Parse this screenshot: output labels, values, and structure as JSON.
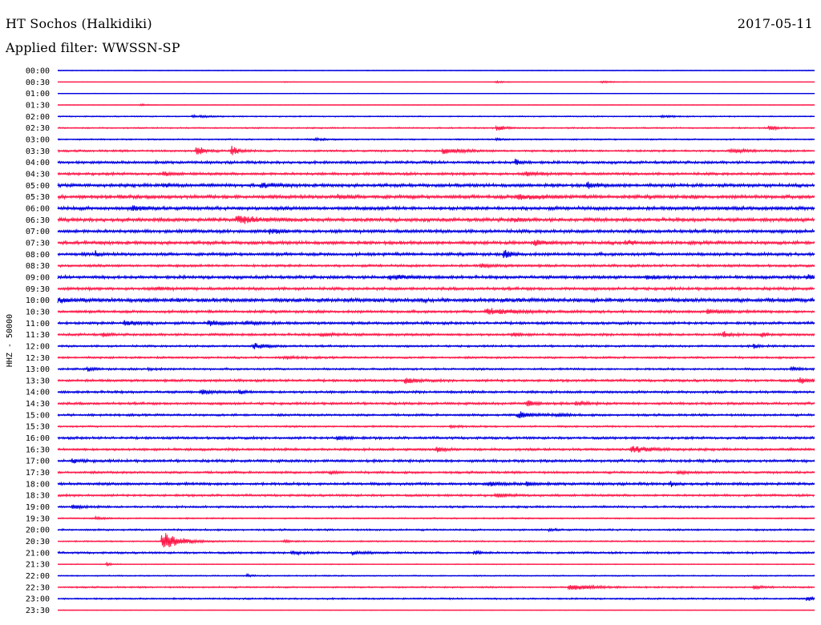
{
  "header": {
    "station": "HT Sochos (Halkidiki)",
    "date": "2017-05-11",
    "filter": "Applied filter: WWSSN-SP"
  },
  "chart_data": {
    "type": "line",
    "title": "HT Sochos (Halkidiki)",
    "ylabel": "HHZ - 50000",
    "xlabel": "",
    "grid": false,
    "colors": [
      "#0000e0",
      "#ff1a4a"
    ],
    "traces": [
      {
        "label": "00:00",
        "color": "#0000e0",
        "noise": 0.15,
        "events": []
      },
      {
        "label": "00:30",
        "color": "#ff1a4a",
        "noise": 0.12,
        "events": [
          {
            "at": 0.3,
            "amp": 0.3,
            "width": 0.004
          },
          {
            "at": 0.58,
            "amp": 0.4,
            "width": 0.01
          },
          {
            "at": 0.72,
            "amp": 0.5,
            "width": 0.012
          }
        ]
      },
      {
        "label": "01:00",
        "color": "#0000e0",
        "noise": 0.12,
        "events": []
      },
      {
        "label": "01:30",
        "color": "#ff1a4a",
        "noise": 0.12,
        "events": [
          {
            "at": 0.11,
            "amp": 0.5,
            "width": 0.006
          }
        ]
      },
      {
        "label": "02:00",
        "color": "#0000e0",
        "noise": 0.25,
        "events": [
          {
            "at": 0.18,
            "amp": 0.6,
            "width": 0.012
          },
          {
            "at": 0.8,
            "amp": 0.5,
            "width": 0.012
          }
        ]
      },
      {
        "label": "02:30",
        "color": "#ff1a4a",
        "noise": 0.3,
        "events": [
          {
            "at": 0.58,
            "amp": 1.6,
            "width": 0.006
          },
          {
            "at": 0.94,
            "amp": 1.3,
            "width": 0.006
          }
        ]
      },
      {
        "label": "03:00",
        "color": "#0000e0",
        "noise": 0.3,
        "events": [
          {
            "at": 0.34,
            "amp": 0.5,
            "width": 0.008
          },
          {
            "at": 0.58,
            "amp": 0.4,
            "width": 0.008
          }
        ]
      },
      {
        "label": "03:30",
        "color": "#ff1a4a",
        "noise": 0.45,
        "events": [
          {
            "at": 0.184,
            "amp": 3.2,
            "width": 0.005
          },
          {
            "at": 0.23,
            "amp": 2.6,
            "width": 0.006
          },
          {
            "at": 0.51,
            "amp": 1.6,
            "width": 0.012
          },
          {
            "at": 0.89,
            "amp": 0.9,
            "width": 0.014
          }
        ]
      },
      {
        "label": "04:00",
        "color": "#0000e0",
        "noise": 0.6,
        "events": [
          {
            "at": 0.605,
            "amp": 1.8,
            "width": 0.004
          }
        ]
      },
      {
        "label": "04:30",
        "color": "#ff1a4a",
        "noise": 0.6,
        "events": [
          {
            "at": 0.14,
            "amp": 0.9,
            "width": 0.006
          },
          {
            "at": 0.62,
            "amp": 0.9,
            "width": 0.01
          }
        ]
      },
      {
        "label": "05:00",
        "color": "#0000e0",
        "noise": 0.75,
        "events": [
          {
            "at": 0.14,
            "amp": 1.1,
            "width": 0.006
          },
          {
            "at": 0.27,
            "amp": 1.0,
            "width": 0.01
          },
          {
            "at": 0.7,
            "amp": 1.2,
            "width": 0.008
          }
        ]
      },
      {
        "label": "05:30",
        "color": "#ff1a4a",
        "noise": 0.8,
        "events": [
          {
            "at": 0.37,
            "amp": 1.1,
            "width": 0.006
          },
          {
            "at": 0.61,
            "amp": 1.5,
            "width": 0.014
          }
        ]
      },
      {
        "label": "06:00",
        "color": "#0000e0",
        "noise": 0.8,
        "events": [
          {
            "at": 0.1,
            "amp": 1.4,
            "width": 0.008
          }
        ]
      },
      {
        "label": "06:30",
        "color": "#ff1a4a",
        "noise": 0.8,
        "events": [
          {
            "at": 0.24,
            "amp": 1.6,
            "width": 0.02
          },
          {
            "at": 0.6,
            "amp": 1.1,
            "width": 0.006
          }
        ]
      },
      {
        "label": "07:00",
        "color": "#0000e0",
        "noise": 0.75,
        "events": [
          {
            "at": 0.28,
            "amp": 1.2,
            "width": 0.006
          }
        ]
      },
      {
        "label": "07:30",
        "color": "#ff1a4a",
        "noise": 0.75,
        "events": [
          {
            "at": 0.63,
            "amp": 1.2,
            "width": 0.008
          },
          {
            "at": 0.75,
            "amp": 1.1,
            "width": 0.008
          }
        ]
      },
      {
        "label": "08:00",
        "color": "#0000e0",
        "noise": 0.7,
        "events": [
          {
            "at": 0.05,
            "amp": 1.8,
            "width": 0.002
          },
          {
            "at": 0.59,
            "amp": 2.0,
            "width": 0.006
          }
        ]
      },
      {
        "label": "08:30",
        "color": "#ff1a4a",
        "noise": 0.55,
        "events": [
          {
            "at": 0.56,
            "amp": 0.8,
            "width": 0.01
          }
        ]
      },
      {
        "label": "09:00",
        "color": "#0000e0",
        "noise": 0.7,
        "events": [
          {
            "at": 0.44,
            "amp": 1.2,
            "width": 0.012
          },
          {
            "at": 0.78,
            "amp": 1.0,
            "width": 0.01
          },
          {
            "at": 0.99,
            "amp": 1.3,
            "width": 0.008
          }
        ]
      },
      {
        "label": "09:30",
        "color": "#ff1a4a",
        "noise": 0.65,
        "events": [
          {
            "at": 0.13,
            "amp": 1.0,
            "width": 0.006
          }
        ]
      },
      {
        "label": "10:00",
        "color": "#0000e0",
        "noise": 0.9,
        "events": [
          {
            "at": 0.0,
            "amp": 1.3,
            "width": 0.006
          }
        ]
      },
      {
        "label": "10:30",
        "color": "#ff1a4a",
        "noise": 0.6,
        "events": [
          {
            "at": 0.57,
            "amp": 1.6,
            "width": 0.02
          },
          {
            "at": 0.86,
            "amp": 1.4,
            "width": 0.01
          }
        ]
      },
      {
        "label": "11:00",
        "color": "#0000e0",
        "noise": 0.6,
        "events": [
          {
            "at": 0.09,
            "amp": 1.6,
            "width": 0.01
          },
          {
            "at": 0.2,
            "amp": 1.4,
            "width": 0.01
          },
          {
            "at": 0.25,
            "amp": 1.0,
            "width": 0.012
          }
        ]
      },
      {
        "label": "11:30",
        "color": "#ff1a4a",
        "noise": 0.55,
        "events": [
          {
            "at": 0.06,
            "amp": 1.1,
            "width": 0.004
          },
          {
            "at": 0.35,
            "amp": 1.0,
            "width": 0.01
          },
          {
            "at": 0.6,
            "amp": 1.0,
            "width": 0.006
          },
          {
            "at": 0.88,
            "amp": 1.7,
            "width": 0.005
          },
          {
            "at": 0.93,
            "amp": 1.4,
            "width": 0.004
          }
        ]
      },
      {
        "label": "12:00",
        "color": "#0000e0",
        "noise": 0.45,
        "events": [
          {
            "at": 0.26,
            "amp": 1.4,
            "width": 0.01
          },
          {
            "at": 0.92,
            "amp": 1.2,
            "width": 0.005
          }
        ]
      },
      {
        "label": "12:30",
        "color": "#ff1a4a",
        "noise": 0.45,
        "events": [
          {
            "at": 0.3,
            "amp": 0.7,
            "width": 0.01
          }
        ]
      },
      {
        "label": "13:00",
        "color": "#0000e0",
        "noise": 0.45,
        "events": [
          {
            "at": 0.04,
            "amp": 0.9,
            "width": 0.006
          },
          {
            "at": 0.12,
            "amp": 0.7,
            "width": 0.006
          },
          {
            "at": 0.97,
            "amp": 0.8,
            "width": 0.008
          }
        ]
      },
      {
        "label": "13:30",
        "color": "#ff1a4a",
        "noise": 0.55,
        "events": [
          {
            "at": 0.46,
            "amp": 1.6,
            "width": 0.008
          },
          {
            "at": 0.98,
            "amp": 1.5,
            "width": 0.008
          }
        ]
      },
      {
        "label": "14:00",
        "color": "#0000e0",
        "noise": 0.55,
        "events": [
          {
            "at": 0.19,
            "amp": 1.1,
            "width": 0.008
          },
          {
            "at": 0.24,
            "amp": 0.9,
            "width": 0.006
          }
        ]
      },
      {
        "label": "14:30",
        "color": "#ff1a4a",
        "noise": 0.55,
        "events": [
          {
            "at": 0.62,
            "amp": 1.7,
            "width": 0.006
          },
          {
            "at": 0.685,
            "amp": 1.5,
            "width": 0.006
          }
        ]
      },
      {
        "label": "15:00",
        "color": "#0000e0",
        "noise": 0.5,
        "events": [
          {
            "at": 0.61,
            "amp": 1.7,
            "width": 0.012
          },
          {
            "at": 0.66,
            "amp": 1.0,
            "width": 0.006
          }
        ]
      },
      {
        "label": "15:30",
        "color": "#ff1a4a",
        "noise": 0.4,
        "events": [
          {
            "at": 0.52,
            "amp": 0.7,
            "width": 0.006
          }
        ]
      },
      {
        "label": "16:00",
        "color": "#0000e0",
        "noise": 0.55,
        "events": [
          {
            "at": 0.37,
            "amp": 0.9,
            "width": 0.008
          }
        ]
      },
      {
        "label": "16:30",
        "color": "#ff1a4a",
        "noise": 0.55,
        "events": [
          {
            "at": 0.5,
            "amp": 1.6,
            "width": 0.005
          },
          {
            "at": 0.76,
            "amp": 1.6,
            "width": 0.014
          }
        ]
      },
      {
        "label": "17:00",
        "color": "#0000e0",
        "noise": 0.6,
        "events": [
          {
            "at": 0.02,
            "amp": 0.9,
            "width": 0.008
          }
        ]
      },
      {
        "label": "17:30",
        "color": "#ff1a4a",
        "noise": 0.5,
        "events": [
          {
            "at": 0.36,
            "amp": 0.8,
            "width": 0.006
          },
          {
            "at": 0.82,
            "amp": 0.9,
            "width": 0.008
          }
        ]
      },
      {
        "label": "18:00",
        "color": "#0000e0",
        "noise": 0.6,
        "events": [
          {
            "at": 0.57,
            "amp": 1.0,
            "width": 0.01
          },
          {
            "at": 0.62,
            "amp": 1.4,
            "width": 0.004
          },
          {
            "at": 0.81,
            "amp": 1.3,
            "width": 0.004
          }
        ]
      },
      {
        "label": "18:30",
        "color": "#ff1a4a",
        "noise": 0.5,
        "events": [
          {
            "at": 0.58,
            "amp": 0.8,
            "width": 0.012
          }
        ]
      },
      {
        "label": "19:00",
        "color": "#0000e0",
        "noise": 0.45,
        "events": [
          {
            "at": 0.02,
            "amp": 0.9,
            "width": 0.008
          }
        ]
      },
      {
        "label": "19:30",
        "color": "#ff1a4a",
        "noise": 0.3,
        "events": [
          {
            "at": 0.05,
            "amp": 0.7,
            "width": 0.006
          }
        ]
      },
      {
        "label": "20:00",
        "color": "#0000e0",
        "noise": 0.4,
        "events": [
          {
            "at": 0.65,
            "amp": 0.6,
            "width": 0.006
          }
        ]
      },
      {
        "label": "20:30",
        "color": "#ff1a4a",
        "noise": 0.3,
        "events": [
          {
            "at": 0.14,
            "amp": 5.5,
            "width": 0.012
          },
          {
            "at": 0.3,
            "amp": 0.6,
            "width": 0.006
          }
        ]
      },
      {
        "label": "21:00",
        "color": "#0000e0",
        "noise": 0.45,
        "events": [
          {
            "at": 0.31,
            "amp": 0.9,
            "width": 0.008
          },
          {
            "at": 0.39,
            "amp": 0.8,
            "width": 0.01
          },
          {
            "at": 0.55,
            "amp": 1.1,
            "width": 0.006
          }
        ]
      },
      {
        "label": "21:30",
        "color": "#ff1a4a",
        "noise": 0.2,
        "events": [
          {
            "at": 0.065,
            "amp": 1.2,
            "width": 0.003
          }
        ]
      },
      {
        "label": "22:00",
        "color": "#0000e0",
        "noise": 0.25,
        "events": [
          {
            "at": 0.25,
            "amp": 0.6,
            "width": 0.006
          }
        ]
      },
      {
        "label": "22:30",
        "color": "#ff1a4a",
        "noise": 0.35,
        "events": [
          {
            "at": 0.68,
            "amp": 1.3,
            "width": 0.02
          },
          {
            "at": 0.92,
            "amp": 0.8,
            "width": 0.008
          }
        ]
      },
      {
        "label": "23:00",
        "color": "#0000e0",
        "noise": 0.35,
        "events": [
          {
            "at": 0.99,
            "amp": 1.2,
            "width": 0.006
          }
        ]
      },
      {
        "label": "23:30",
        "color": "#ff1a4a",
        "noise": 0.15,
        "events": []
      }
    ]
  }
}
